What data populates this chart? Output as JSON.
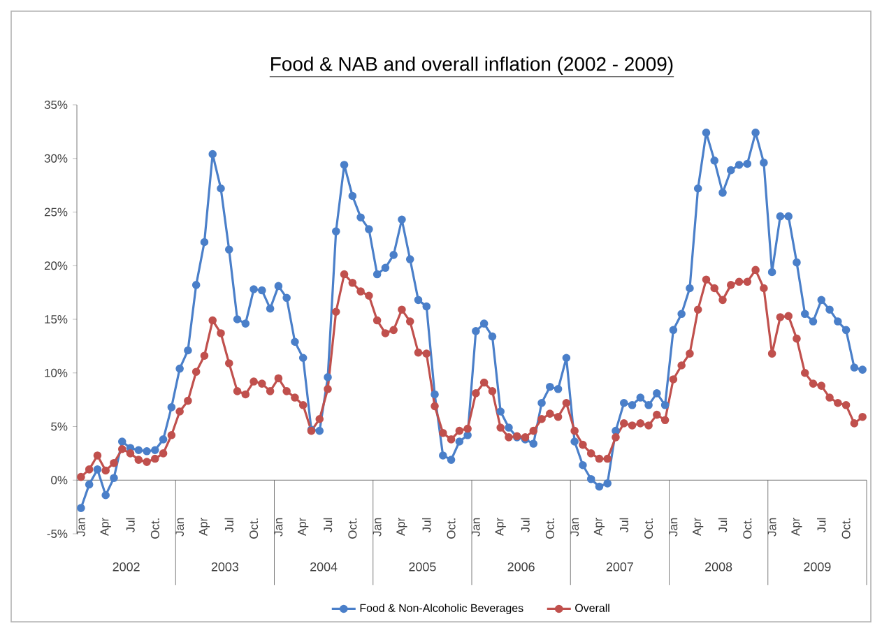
{
  "chart_data": {
    "type": "line",
    "title": "Food & NAB and overall inflation (2002 - 2009)",
    "categories": [
      "Jan",
      null,
      null,
      "Apr",
      null,
      null,
      "Jul",
      null,
      null,
      "Oct.",
      null,
      null,
      "Jan",
      null,
      null,
      "Apr",
      null,
      null,
      "Jul",
      null,
      null,
      "Oct.",
      null,
      null,
      "Jan",
      null,
      null,
      "Apr",
      null,
      null,
      "Jul",
      null,
      null,
      "Oct.",
      null,
      null,
      "Jan",
      null,
      null,
      "Apr",
      null,
      null,
      "Jul",
      null,
      null,
      "Oct.",
      null,
      null,
      "Jan",
      null,
      null,
      "Apr",
      null,
      null,
      "Jul",
      null,
      null,
      "Oct.",
      null,
      null,
      "Jan",
      null,
      null,
      "Apr",
      null,
      null,
      "Jul",
      null,
      null,
      "Oct.",
      null,
      null,
      "Jan",
      null,
      null,
      "Apr",
      null,
      null,
      "Jul",
      null,
      null,
      "Oct.",
      null,
      null,
      "Jan",
      null,
      null,
      "Apr",
      null,
      null,
      "Jul",
      null,
      null,
      "Oct.",
      null,
      null
    ],
    "series": [
      {
        "name": "Food & Non-Alcoholic Beverages",
        "color": "#4a7fc9",
        "values": [
          -2.6,
          -0.4,
          1.0,
          -1.4,
          0.2,
          3.6,
          3.0,
          2.8,
          2.7,
          2.8,
          3.8,
          6.8,
          10.4,
          12.1,
          18.2,
          22.2,
          30.4,
          27.2,
          21.5,
          15.0,
          14.6,
          17.8,
          17.7,
          16.0,
          18.1,
          17.0,
          12.9,
          11.4,
          4.7,
          4.6,
          9.6,
          23.2,
          29.4,
          26.5,
          24.5,
          23.4,
          19.2,
          19.8,
          21.0,
          24.3,
          20.6,
          16.8,
          16.2,
          8.0,
          2.3,
          1.9,
          3.6,
          4.2,
          13.9,
          14.6,
          13.4,
          6.4,
          4.9,
          4.0,
          3.8,
          3.4,
          7.2,
          8.7,
          8.5,
          11.4,
          3.6,
          1.4,
          0.1,
          -0.6,
          -0.3,
          4.6,
          7.2,
          7.0,
          7.7,
          7.0,
          8.1,
          7.0,
          14.0,
          15.5,
          17.9,
          27.2,
          32.4,
          29.8,
          26.8,
          28.9,
          29.4,
          29.5,
          32.4,
          29.6,
          19.4,
          24.6,
          24.6,
          20.3,
          15.5,
          14.8,
          16.8,
          15.9,
          14.8,
          14.0,
          10.5,
          10.3
        ]
      },
      {
        "name": "Overall",
        "color": "#c0504d",
        "values": [
          0.3,
          1.0,
          2.3,
          0.9,
          1.6,
          2.9,
          2.5,
          1.9,
          1.7,
          2.0,
          2.5,
          4.2,
          6.4,
          7.4,
          10.1,
          11.6,
          14.9,
          13.7,
          10.9,
          8.3,
          8.0,
          9.2,
          9.0,
          8.3,
          9.5,
          8.3,
          7.7,
          7.0,
          4.6,
          5.7,
          8.5,
          15.7,
          19.2,
          18.4,
          17.6,
          17.2,
          14.9,
          13.7,
          14.0,
          15.9,
          14.8,
          11.9,
          11.8,
          6.9,
          4.4,
          3.8,
          4.6,
          4.8,
          8.1,
          9.1,
          8.3,
          4.9,
          4.0,
          4.1,
          4.0,
          4.6,
          5.7,
          6.2,
          5.9,
          7.2,
          4.6,
          3.3,
          2.5,
          2.0,
          2.0,
          4.0,
          5.3,
          5.1,
          5.3,
          5.1,
          6.1,
          5.6,
          9.4,
          10.7,
          11.8,
          15.9,
          18.7,
          17.9,
          16.8,
          18.2,
          18.5,
          18.5,
          19.6,
          17.9,
          11.8,
          15.2,
          15.3,
          13.2,
          10.0,
          9.0,
          8.8,
          7.7,
          7.2,
          7.0,
          5.3,
          5.9
        ]
      }
    ],
    "ylim": [
      -5,
      35
    ],
    "yticks": [
      {
        "value": -5,
        "label": "-5%"
      },
      {
        "value": 0,
        "label": "0%"
      },
      {
        "value": 5,
        "label": "5%"
      },
      {
        "value": 10,
        "label": "10%"
      },
      {
        "value": 15,
        "label": "15%"
      },
      {
        "value": 20,
        "label": "20%"
      },
      {
        "value": 25,
        "label": "25%"
      },
      {
        "value": 30,
        "label": "30%"
      },
      {
        "value": 35,
        "label": "35%"
      }
    ],
    "annotations": [
      "2002",
      "2003",
      "2004",
      "2005",
      "2006",
      "2007",
      "2008",
      "2009"
    ],
    "legend": "bottom",
    "marker": "circle"
  }
}
